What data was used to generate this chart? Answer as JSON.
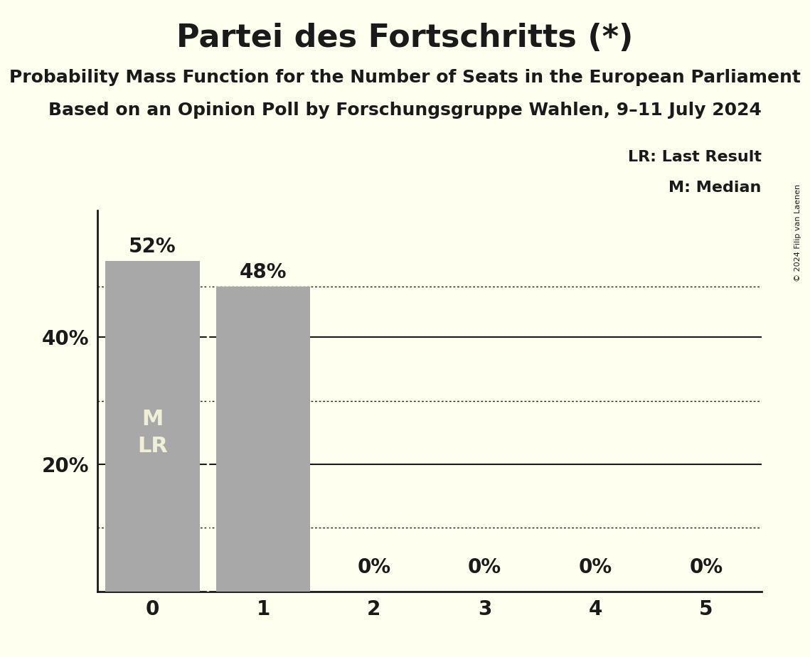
{
  "title": "Partei des Fortschritts (*)",
  "subtitle1": "Probability Mass Function for the Number of Seats in the European Parliament",
  "subtitle2": "Based on an Opinion Poll by Forschungsgruppe Wahlen, 9–11 July 2024",
  "copyright": "© 2024 Filip van Laenen",
  "categories": [
    0,
    1,
    2,
    3,
    4,
    5
  ],
  "values": [
    0.52,
    0.48,
    0.0,
    0.0,
    0.0,
    0.0
  ],
  "bar_color": "#a8a8a8",
  "background_color": "#fffff0",
  "ylim": [
    0,
    0.6
  ],
  "yticks": [
    0.2,
    0.4
  ],
  "ytick_labels": [
    "20%",
    "40%"
  ],
  "solid_gridlines": [
    0.2,
    0.4
  ],
  "dotted_gridlines": [
    0.1,
    0.3,
    0.48
  ],
  "legend_lr": "LR: Last Result",
  "legend_m": "M: Median",
  "bar_label_fontsize": 20,
  "axis_tick_fontsize": 20,
  "title_fontsize": 32,
  "subtitle_fontsize": 18,
  "inbar_fontsize": 22,
  "legend_fontsize": 16,
  "copyright_fontsize": 8,
  "white_sep_color": "#fffff0",
  "inbar_text_color": "#f0f0d8",
  "text_color": "#1a1a1a"
}
